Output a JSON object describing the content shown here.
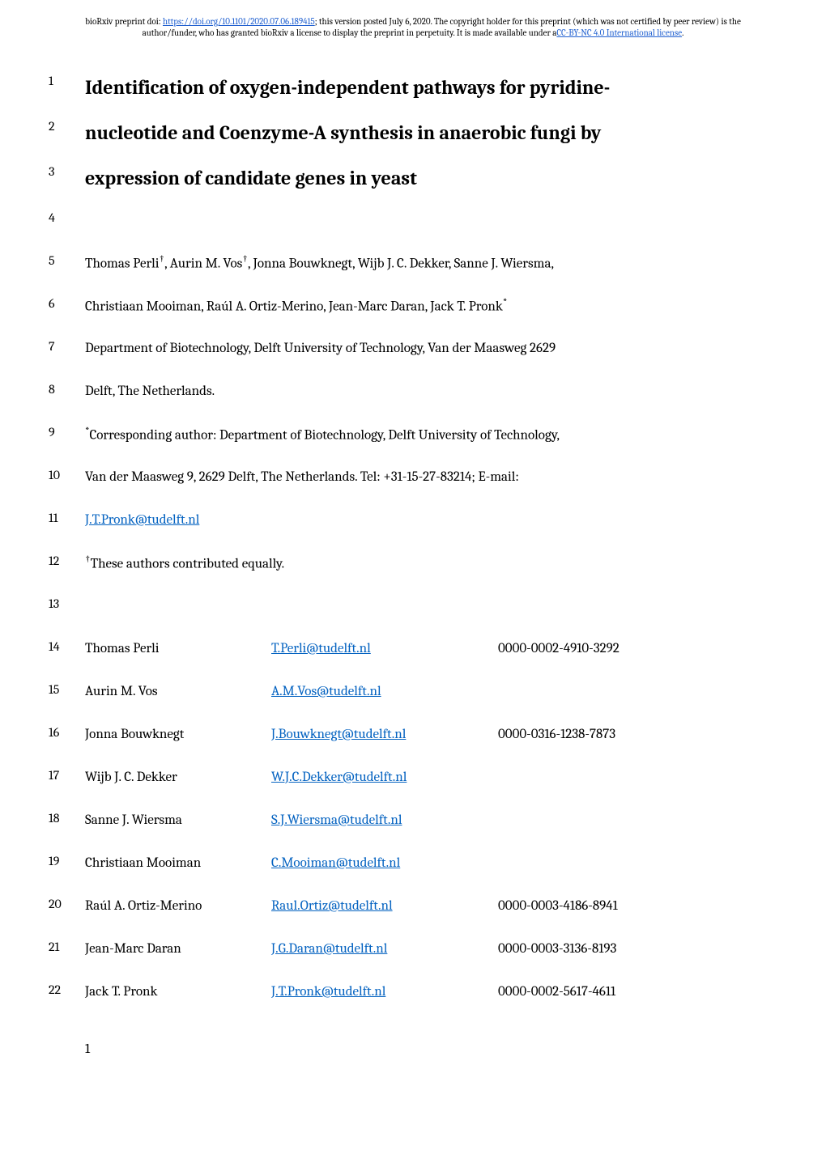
{
  "preprint": {
    "text_before_doi": "bioRxiv preprint doi: ",
    "doi_url": "https://doi.org/10.1101/2020.07.06.189415",
    "text_after_doi": "; this version posted July 6, 2020. The copyright holder for this preprint (which was not certified by peer review) is the author/funder, who has granted bioRxiv a license to display the preprint in perpetuity. It is made available under a",
    "license_text": "CC-BY-NC 4.0 International license",
    "text_end": "."
  },
  "title": {
    "line1": "Identification of oxygen-independent pathways for pyridine-",
    "line2": "nucleotide and Coenzyme-A synthesis in anaerobic fungi by",
    "line3": "expression of candidate genes in yeast"
  },
  "body": {
    "line5": "Thomas Perli†, Aurin M. Vos†, Jonna Bouwknegt, Wijb J. C. Dekker, Sanne J. Wiersma,",
    "line6": "Christiaan Mooiman, Raúl A. Ortiz-Merino, Jean-Marc Daran, Jack T. Pronk*",
    "line7": "Department of Biotechnology, Delft University of Technology, Van der Maasweg 2629",
    "line8": "Delft, The Netherlands.",
    "line9": "*Corresponding author: Department of Biotechnology, Delft University of Technology,",
    "line10": "Van der Maasweg 9, 2629 Delft, The Netherlands. Tel: +31-15-27-83214; E-mail:",
    "line11": "J.T.Pronk@tudelft.nl",
    "line12": "†These authors contributed equally."
  },
  "authors": [
    {
      "num": "14",
      "name": "Thomas Perli",
      "email": "T.Perli@tudelft.nl",
      "orcid": "0000-0002-4910-3292"
    },
    {
      "num": "15",
      "name": "Aurin M. Vos",
      "email": "A.M.Vos@tudelft.nl",
      "orcid": ""
    },
    {
      "num": "16",
      "name": "Jonna Bouwknegt",
      "email": "J.Bouwknegt@tudelft.nl",
      "orcid": "0000-0316-1238-7873"
    },
    {
      "num": "17",
      "name": "Wijb J. C. Dekker",
      "email": "W.J.C.Dekker@tudelft.nl",
      "orcid": ""
    },
    {
      "num": "18",
      "name": "Sanne J. Wiersma",
      "email": "S.J.Wiersma@tudelft.nl",
      "orcid": ""
    },
    {
      "num": "19",
      "name": "Christiaan Mooiman",
      "email": "C.Mooiman@tudelft.nl",
      "orcid": ""
    },
    {
      "num": "20",
      "name": "Raúl A. Ortiz-Merino",
      "email": "Raul.Ortiz@tudelft.nl",
      "orcid": "0000-0003-4186-8941"
    },
    {
      "num": "21",
      "name": "Jean-Marc Daran",
      "email": "J.G.Daran@tudelft.nl",
      "orcid": "0000-0003-3136-8193"
    },
    {
      "num": "22",
      "name": "Jack T. Pronk",
      "email": "J.T.Pronk@tudelft.nl",
      "orcid": "0000-0002-5617-4611"
    }
  ],
  "line_numbers": {
    "n1": "1",
    "n2": "2",
    "n3": "3",
    "n4": "4",
    "n5": "5",
    "n6": "6",
    "n7": "7",
    "n8": "8",
    "n9": "9",
    "n10": "10",
    "n11": "11",
    "n12": "12",
    "n13": "13"
  },
  "page_number": "1",
  "colors": {
    "link": "#0563c1",
    "header_link": "#2060d0",
    "text": "#000000",
    "background": "#ffffff"
  }
}
